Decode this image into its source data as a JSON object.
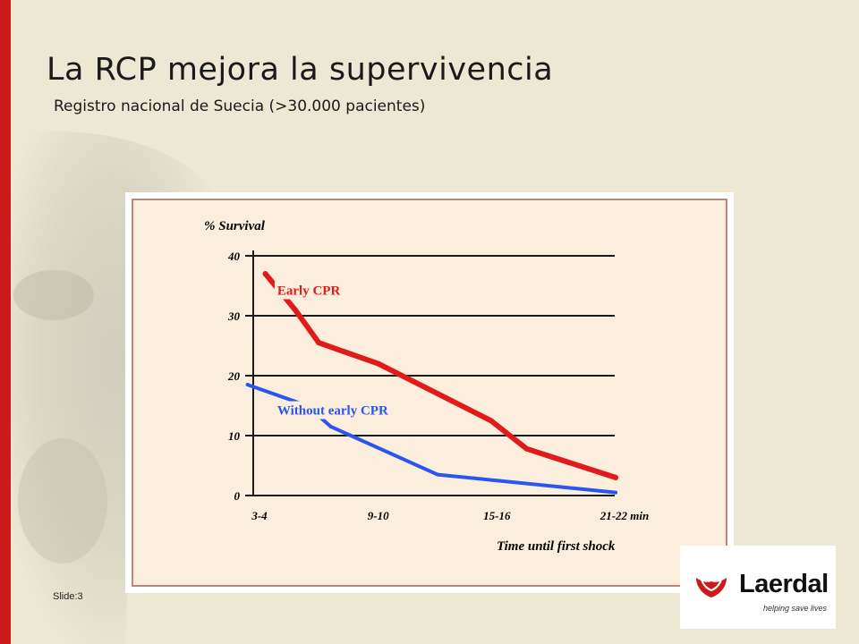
{
  "slide": {
    "title": "La RCP mejora la supervivencia",
    "subtitle": "Registro nacional de Suecia  (>30.000 pacientes)",
    "slide_number": "Slide:3",
    "accent_color": "#cc1a1a",
    "background_color": "#ece8d4"
  },
  "logo": {
    "brand": "Laerdal",
    "tagline": "helping save lives"
  },
  "chart_data": {
    "type": "line",
    "ylabel": "% Survival",
    "xlabel": "Time until first shock",
    "categories": [
      "3-4",
      "9-10",
      "15-16",
      "21-22 min"
    ],
    "ylim": [
      0,
      40
    ],
    "yticks": [
      0,
      10,
      20,
      30,
      40
    ],
    "grid": true,
    "series": [
      {
        "name": "Early CPR",
        "color": "#e01b1b",
        "points": [
          [
            0.05,
            37
          ],
          [
            0.3,
            31
          ],
          [
            0.5,
            25.5
          ],
          [
            1.0,
            22
          ],
          [
            1.6,
            16
          ],
          [
            1.95,
            12.5
          ],
          [
            2.25,
            7.8
          ],
          [
            3.0,
            3
          ]
        ]
      },
      {
        "name": "Without early CPR",
        "color": "#2a55f0",
        "points": [
          [
            -0.1,
            18.5
          ],
          [
            0.4,
            15
          ],
          [
            0.6,
            11.5
          ],
          [
            1.5,
            3.5
          ],
          [
            3.0,
            0.5
          ]
        ]
      }
    ],
    "label_anchors": {
      "Early CPR": [
        0.15,
        33.5
      ],
      "Without early CPR": [
        0.15,
        13.5
      ]
    }
  }
}
